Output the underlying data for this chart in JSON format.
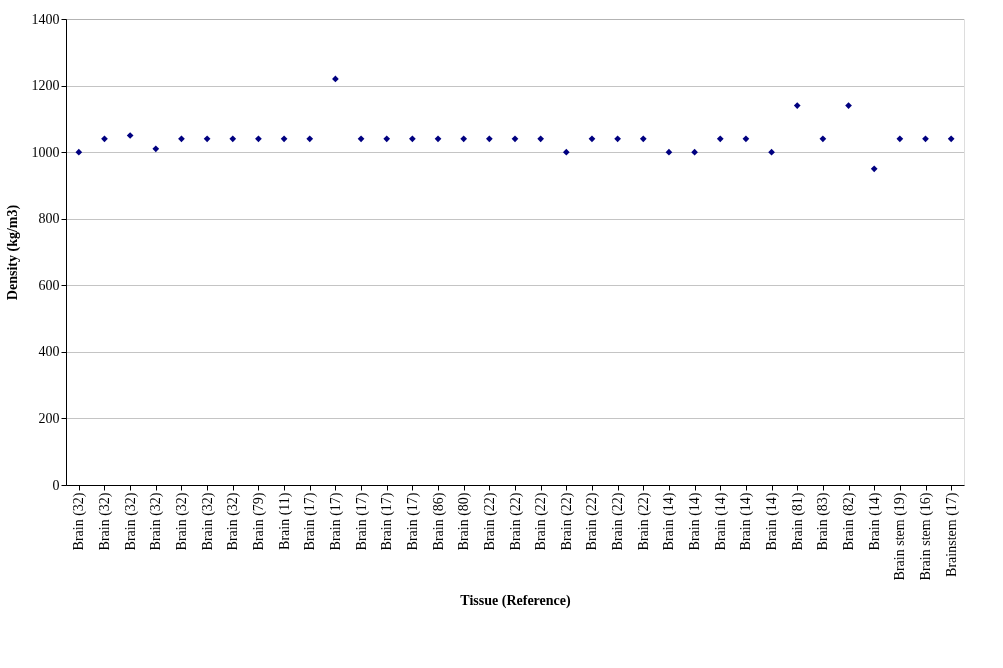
{
  "chart_data": {
    "type": "scatter",
    "xlabel": "Tissue (Reference)",
    "ylabel": "Density (kg/m3)",
    "categories": [
      "Brain (32)",
      "Brain (32)",
      "Brain (32)",
      "Brain (32)",
      "Brain (32)",
      "Brain (32)",
      "Brain (32)",
      "Brain (79)",
      "Brain (11)",
      "Brain (17)",
      "Brain (17)",
      "Brain (17)",
      "Brain (17)",
      "Brain (17)",
      "Brain (86)",
      "Brain (80)",
      "Brain (22)",
      "Brain (22)",
      "Brain (22)",
      "Brain (22)",
      "Brain (22)",
      "Brain (22)",
      "Brain (22)",
      "Brain (14)",
      "Brain (14)",
      "Brain (14)",
      "Brain (14)",
      "Brain (14)",
      "Brain (81)",
      "Brain (83)",
      "Brain (82)",
      "Brain (14)",
      "Brain stem (19)",
      "Brain stem (16)",
      "Brainstem (17)"
    ],
    "series": [
      {
        "color": "#000080",
        "values": [
          1000,
          1040,
          1050,
          1010,
          1040,
          1040,
          1040,
          1040,
          1040,
          1040,
          1220,
          1040,
          1040,
          1040,
          1040,
          1040,
          1040,
          1040,
          1040,
          1000,
          1040,
          1040,
          1040,
          1000,
          1000,
          1040,
          1040,
          1000,
          1140,
          1040,
          1140,
          950,
          1040,
          1040,
          1040
        ]
      }
    ],
    "ylim": [
      0,
      1400
    ],
    "yticks": [
      0,
      200,
      400,
      600,
      800,
      1000,
      1200,
      1400
    ],
    "grid": "y",
    "marker": "diamond",
    "legend": false
  }
}
